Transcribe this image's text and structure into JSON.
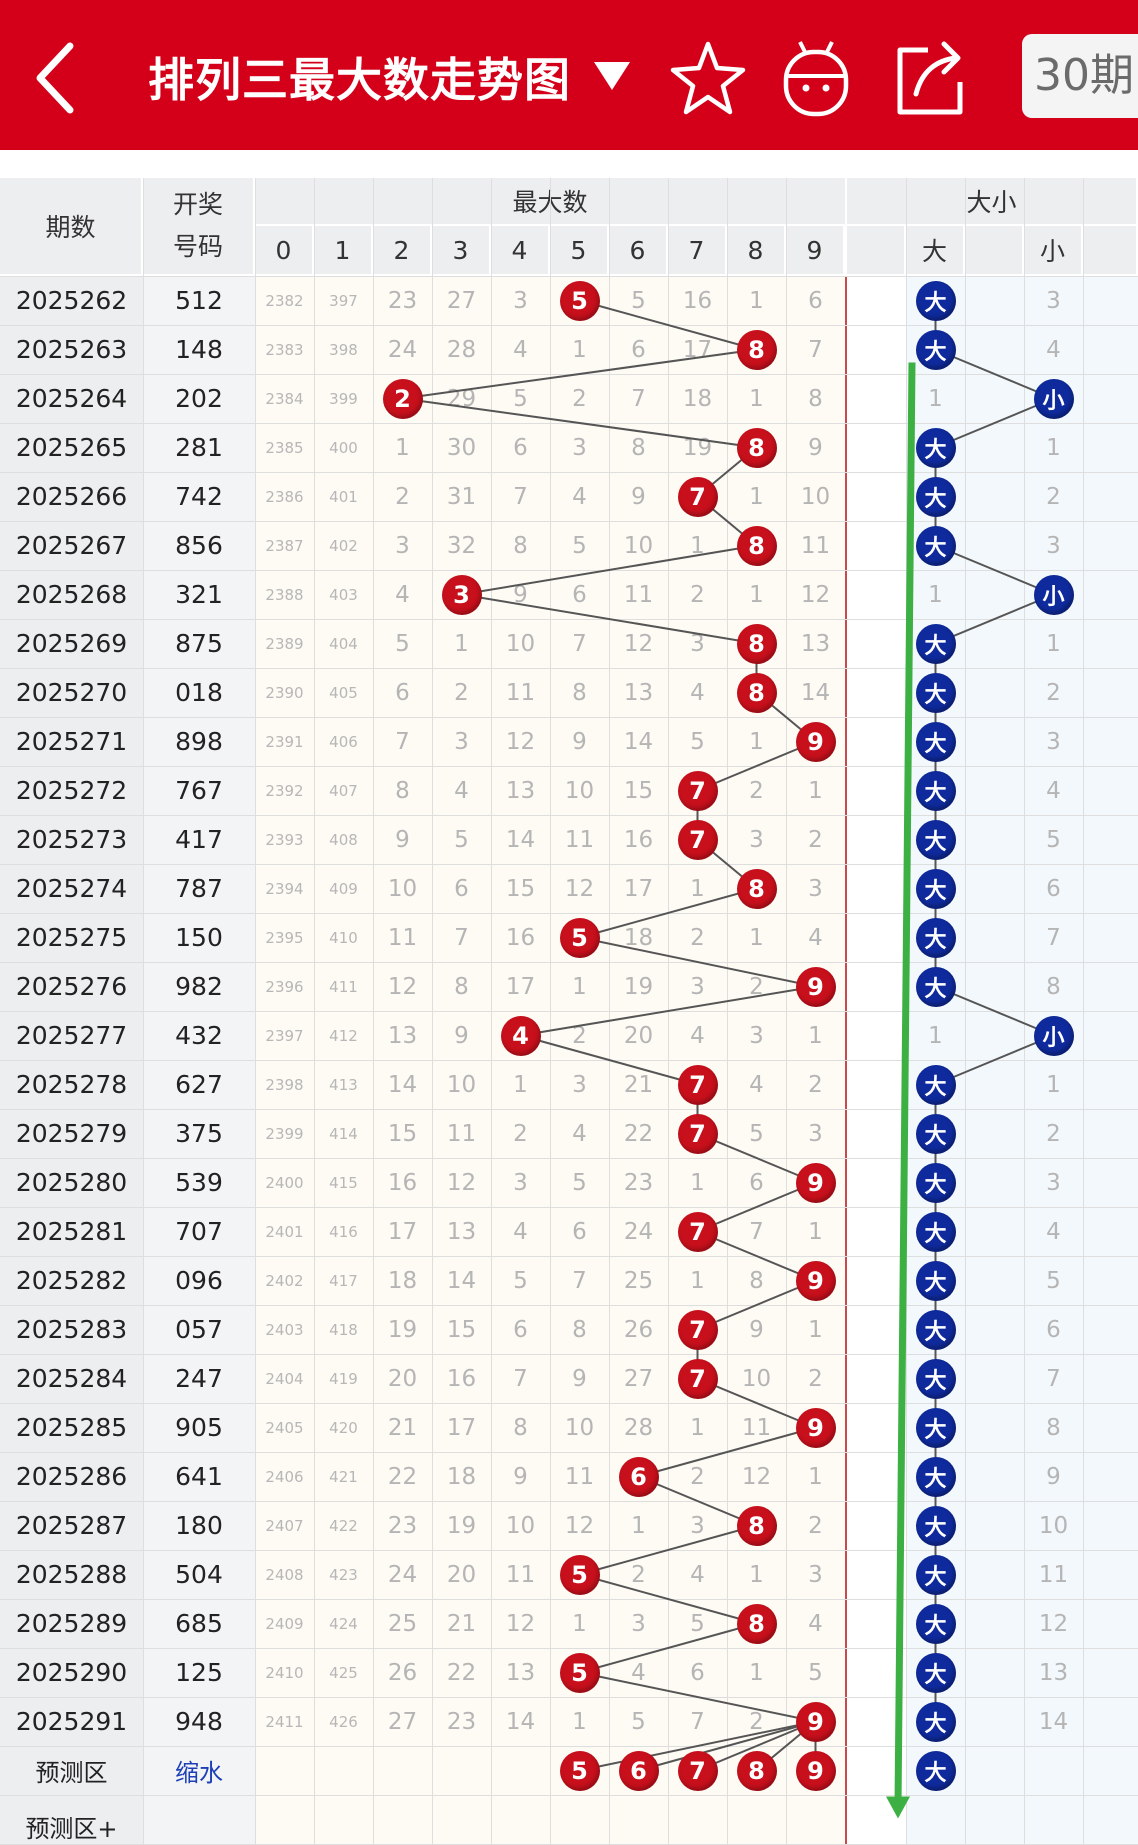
{
  "header": {
    "title": "排列三最大数走势图",
    "period_button": "30期",
    "icons": [
      "back-arrow-icon",
      "dropdown-triangle-icon",
      "star-icon",
      "robot-icon",
      "share-icon"
    ],
    "bar_color": "#d4001a"
  },
  "table": {
    "col_period": "期数",
    "col_draw_line1": "开奖",
    "col_draw_line2": "号码",
    "group_max": "最大数",
    "group_size": "大小",
    "digits": [
      "0",
      "1",
      "2",
      "3",
      "4",
      "5",
      "6",
      "7",
      "8",
      "9"
    ],
    "size_labels": [
      "大",
      "",
      "小"
    ],
    "rows": [
      {
        "period": "2025262",
        "draw": "512",
        "max": 5,
        "size": "大",
        "miss": [
          "2382",
          "397",
          "23",
          "27",
          "3",
          "",
          "5",
          "16",
          "1",
          "6"
        ],
        "size_miss": [
          "",
          "",
          "3"
        ]
      },
      {
        "period": "2025263",
        "draw": "148",
        "max": 8,
        "size": "大",
        "miss": [
          "2383",
          "398",
          "24",
          "28",
          "4",
          "1",
          "6",
          "17",
          "",
          "7"
        ],
        "size_miss": [
          "",
          "",
          "4"
        ]
      },
      {
        "period": "2025264",
        "draw": "202",
        "max": 2,
        "size": "小",
        "miss": [
          "2384",
          "399",
          "",
          "29",
          "5",
          "2",
          "7",
          "18",
          "1",
          "8"
        ],
        "size_miss": [
          "1",
          "",
          ""
        ]
      },
      {
        "period": "2025265",
        "draw": "281",
        "max": 8,
        "size": "大",
        "miss": [
          "2385",
          "400",
          "1",
          "30",
          "6",
          "3",
          "8",
          "19",
          "",
          "9"
        ],
        "size_miss": [
          "",
          "",
          "1"
        ]
      },
      {
        "period": "2025266",
        "draw": "742",
        "max": 7,
        "size": "大",
        "miss": [
          "2386",
          "401",
          "2",
          "31",
          "7",
          "4",
          "9",
          "",
          "1",
          "10"
        ],
        "size_miss": [
          "",
          "",
          "2"
        ]
      },
      {
        "period": "2025267",
        "draw": "856",
        "max": 8,
        "size": "大",
        "miss": [
          "2387",
          "402",
          "3",
          "32",
          "8",
          "5",
          "10",
          "1",
          "",
          "11"
        ],
        "size_miss": [
          "",
          "",
          "3"
        ]
      },
      {
        "period": "2025268",
        "draw": "321",
        "max": 3,
        "size": "小",
        "miss": [
          "2388",
          "403",
          "4",
          "",
          "9",
          "6",
          "11",
          "2",
          "1",
          "12"
        ],
        "size_miss": [
          "1",
          "",
          ""
        ]
      },
      {
        "period": "2025269",
        "draw": "875",
        "max": 8,
        "size": "大",
        "miss": [
          "2389",
          "404",
          "5",
          "1",
          "10",
          "7",
          "12",
          "3",
          "",
          "13"
        ],
        "size_miss": [
          "",
          "",
          "1"
        ]
      },
      {
        "period": "2025270",
        "draw": "018",
        "max": 8,
        "size": "大",
        "miss": [
          "2390",
          "405",
          "6",
          "2",
          "11",
          "8",
          "13",
          "4",
          "",
          "14"
        ],
        "size_miss": [
          "",
          "",
          "2"
        ]
      },
      {
        "period": "2025271",
        "draw": "898",
        "max": 9,
        "size": "大",
        "miss": [
          "2391",
          "406",
          "7",
          "3",
          "12",
          "9",
          "14",
          "5",
          "1",
          ""
        ],
        "size_miss": [
          "",
          "",
          "3"
        ]
      },
      {
        "period": "2025272",
        "draw": "767",
        "max": 7,
        "size": "大",
        "miss": [
          "2392",
          "407",
          "8",
          "4",
          "13",
          "10",
          "15",
          "",
          "2",
          "1"
        ],
        "size_miss": [
          "",
          "",
          "4"
        ]
      },
      {
        "period": "2025273",
        "draw": "417",
        "max": 7,
        "size": "大",
        "miss": [
          "2393",
          "408",
          "9",
          "5",
          "14",
          "11",
          "16",
          "",
          "3",
          "2"
        ],
        "size_miss": [
          "",
          "",
          "5"
        ]
      },
      {
        "period": "2025274",
        "draw": "787",
        "max": 8,
        "size": "大",
        "miss": [
          "2394",
          "409",
          "10",
          "6",
          "15",
          "12",
          "17",
          "1",
          "",
          "3"
        ],
        "size_miss": [
          "",
          "",
          "6"
        ]
      },
      {
        "period": "2025275",
        "draw": "150",
        "max": 5,
        "size": "大",
        "miss": [
          "2395",
          "410",
          "11",
          "7",
          "16",
          "",
          "18",
          "2",
          "1",
          "4"
        ],
        "size_miss": [
          "",
          "",
          "7"
        ]
      },
      {
        "period": "2025276",
        "draw": "982",
        "max": 9,
        "size": "大",
        "miss": [
          "2396",
          "411",
          "12",
          "8",
          "17",
          "1",
          "19",
          "3",
          "2",
          ""
        ],
        "size_miss": [
          "",
          "",
          "8"
        ]
      },
      {
        "period": "2025277",
        "draw": "432",
        "max": 4,
        "size": "小",
        "miss": [
          "2397",
          "412",
          "13",
          "9",
          "",
          "2",
          "20",
          "4",
          "3",
          "1"
        ],
        "size_miss": [
          "1",
          "",
          ""
        ]
      },
      {
        "period": "2025278",
        "draw": "627",
        "max": 7,
        "size": "大",
        "miss": [
          "2398",
          "413",
          "14",
          "10",
          "1",
          "3",
          "21",
          "",
          "4",
          "2"
        ],
        "size_miss": [
          "",
          "",
          "1"
        ]
      },
      {
        "period": "2025279",
        "draw": "375",
        "max": 7,
        "size": "大",
        "miss": [
          "2399",
          "414",
          "15",
          "11",
          "2",
          "4",
          "22",
          "",
          "5",
          "3"
        ],
        "size_miss": [
          "",
          "",
          "2"
        ]
      },
      {
        "period": "2025280",
        "draw": "539",
        "max": 9,
        "size": "大",
        "miss": [
          "2400",
          "415",
          "16",
          "12",
          "3",
          "5",
          "23",
          "1",
          "6",
          ""
        ],
        "size_miss": [
          "",
          "",
          "3"
        ]
      },
      {
        "period": "2025281",
        "draw": "707",
        "max": 7,
        "size": "大",
        "miss": [
          "2401",
          "416",
          "17",
          "13",
          "4",
          "6",
          "24",
          "",
          "7",
          "1"
        ],
        "size_miss": [
          "",
          "",
          "4"
        ]
      },
      {
        "period": "2025282",
        "draw": "096",
        "max": 9,
        "size": "大",
        "miss": [
          "2402",
          "417",
          "18",
          "14",
          "5",
          "7",
          "25",
          "1",
          "8",
          ""
        ],
        "size_miss": [
          "",
          "",
          "5"
        ]
      },
      {
        "period": "2025283",
        "draw": "057",
        "max": 7,
        "size": "大",
        "miss": [
          "2403",
          "418",
          "19",
          "15",
          "6",
          "8",
          "26",
          "",
          "9",
          "1"
        ],
        "size_miss": [
          "",
          "",
          "6"
        ]
      },
      {
        "period": "2025284",
        "draw": "247",
        "max": 7,
        "size": "大",
        "miss": [
          "2404",
          "419",
          "20",
          "16",
          "7",
          "9",
          "27",
          "",
          "10",
          "2"
        ],
        "size_miss": [
          "",
          "",
          "7"
        ]
      },
      {
        "period": "2025285",
        "draw": "905",
        "max": 9,
        "size": "大",
        "miss": [
          "2405",
          "420",
          "21",
          "17",
          "8",
          "10",
          "28",
          "1",
          "11",
          ""
        ],
        "size_miss": [
          "",
          "",
          "8"
        ]
      },
      {
        "period": "2025286",
        "draw": "641",
        "max": 6,
        "size": "大",
        "miss": [
          "2406",
          "421",
          "22",
          "18",
          "9",
          "11",
          "",
          "2",
          "12",
          "1"
        ],
        "size_miss": [
          "",
          "",
          "9"
        ]
      },
      {
        "period": "2025287",
        "draw": "180",
        "max": 8,
        "size": "大",
        "miss": [
          "2407",
          "422",
          "23",
          "19",
          "10",
          "12",
          "1",
          "3",
          "",
          "2"
        ],
        "size_miss": [
          "",
          "",
          "10"
        ]
      },
      {
        "period": "2025288",
        "draw": "504",
        "max": 5,
        "size": "大",
        "miss": [
          "2408",
          "423",
          "24",
          "20",
          "11",
          "",
          "2",
          "4",
          "1",
          "3"
        ],
        "size_miss": [
          "",
          "",
          "11"
        ]
      },
      {
        "period": "2025289",
        "draw": "685",
        "max": 8,
        "size": "大",
        "miss": [
          "2409",
          "424",
          "25",
          "21",
          "12",
          "1",
          "3",
          "5",
          "",
          "4"
        ],
        "size_miss": [
          "",
          "",
          "12"
        ]
      },
      {
        "period": "2025290",
        "draw": "125",
        "max": 5,
        "size": "大",
        "miss": [
          "2410",
          "425",
          "26",
          "22",
          "13",
          "",
          "4",
          "6",
          "1",
          "5"
        ],
        "size_miss": [
          "",
          "",
          "13"
        ]
      },
      {
        "period": "2025291",
        "draw": "948",
        "max": 9,
        "size": "大",
        "miss": [
          "2411",
          "426",
          "27",
          "23",
          "14",
          "1",
          "5",
          "7",
          "2",
          ""
        ],
        "size_miss": [
          "",
          "",
          "14"
        ]
      }
    ],
    "prediction": {
      "label": "预测区",
      "shrink_label": "缩水",
      "balls": [
        "5",
        "6",
        "7",
        "8",
        "9"
      ],
      "size": "大",
      "label2": "预测区+"
    }
  },
  "colors": {
    "red_ball": "#c8101c",
    "blue_ball": "#0f2a9c",
    "trend_line": "#555555",
    "green_arrow": "#3cb043",
    "header_bg": "#eceeef"
  }
}
